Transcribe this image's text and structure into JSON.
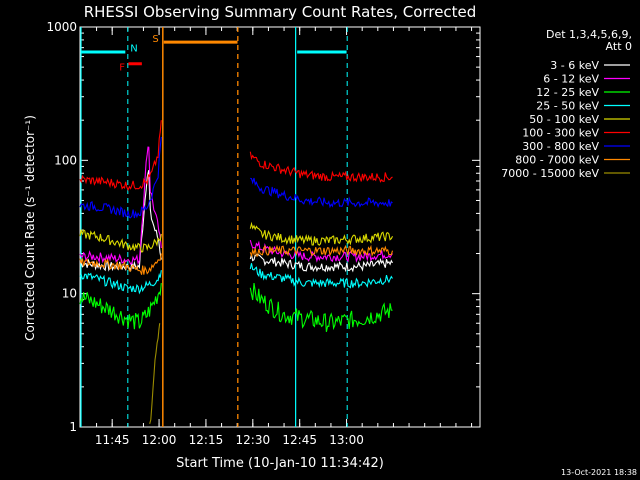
{
  "chart_data": {
    "type": "line",
    "title": "RHESSI Observing Summary Count Rates, Corrected",
    "xlabel": "Start Time (10-Jan-10 11:34:42)",
    "ylabel": "Corrected Count Rate (s⁻¹ detector⁻¹)",
    "x_unit": "minutes since 11:34:42",
    "xlim": [
      0,
      128
    ],
    "xticks": [
      {
        "label": "11:45",
        "x": 10.3
      },
      {
        "label": "12:00",
        "x": 25.3
      },
      {
        "label": "12:15",
        "x": 40.3
      },
      {
        "label": "12:30",
        "x": 55.3
      },
      {
        "label": "12:45",
        "x": 70.3
      },
      {
        "label": "13:00",
        "x": 85.3
      }
    ],
    "yscale": "log",
    "ylim": [
      1,
      1000
    ],
    "yticks": [
      {
        "label": "1",
        "y": 1
      },
      {
        "label": "10",
        "y": 10
      },
      {
        "label": "100",
        "y": 100
      },
      {
        "label": "1000",
        "y": 1000
      }
    ],
    "legend": {
      "placement": "top-right",
      "header": [
        "Det 1,3,4,5,6,9,",
        "Att 0"
      ]
    },
    "series": [
      {
        "name": "3 - 6 keV",
        "color": "#ffffff",
        "segments": [
          {
            "x": [
              0,
              5,
              10,
              15,
              19,
              21.5,
              22,
              22.5,
              24,
              25.2,
              26
            ],
            "y": [
              17,
              16.5,
              16,
              16,
              16,
              80,
              82,
              40,
              30,
              25,
              18
            ]
          },
          {
            "x": [
              54.5,
              58,
              65,
              72,
              80,
              90,
              100
            ],
            "y": [
              19,
              18,
              17,
              16,
              16,
              16,
              17
            ]
          }
        ]
      },
      {
        "name": "6 - 12 keV",
        "color": "#ff00ff",
        "segments": [
          {
            "x": [
              0,
              5,
              10,
              15,
              19,
              21.5,
              22,
              22.5,
              24,
              25.2,
              26
            ],
            "y": [
              19,
              19,
              18.5,
              18,
              18,
              120,
              130,
              60,
              40,
              30,
              22
            ]
          },
          {
            "x": [
              54.5,
              58,
              65,
              72,
              80,
              90,
              100
            ],
            "y": [
              24,
              22,
              20,
              19,
              19,
              19,
              20
            ]
          }
        ]
      },
      {
        "name": "12 - 25 keV",
        "color": "#00ff00",
        "segments": [
          {
            "x": [
              0,
              5,
              10,
              15,
              19,
              21.5,
              23,
              25,
              26
            ],
            "y": [
              9.5,
              8.5,
              7.5,
              6.5,
              6,
              7,
              8,
              10,
              12
            ]
          },
          {
            "x": [
              54.5,
              58,
              65,
              72,
              80,
              90,
              100
            ],
            "y": [
              11,
              9,
              7,
              6.5,
              6,
              6.5,
              7.5
            ]
          }
        ]
      },
      {
        "name": "25 - 50 keV",
        "color": "#00ffff",
        "segments": [
          {
            "x": [
              0,
              5,
              10,
              15,
              19,
              21.5,
              23,
              25,
              26
            ],
            "y": [
              14,
              13,
              12,
              11,
              11,
              11.5,
              12,
              13,
              15
            ]
          },
          {
            "x": [
              54.5,
              58,
              65,
              72,
              80,
              90,
              100
            ],
            "y": [
              16,
              14,
              13,
              12,
              12,
              12,
              13
            ]
          }
        ]
      },
      {
        "name": "50 - 100 keV",
        "color": "#d8d800",
        "segments": [
          {
            "x": [
              0,
              5,
              10,
              15,
              19,
              21.5,
              23,
              25,
              26
            ],
            "y": [
              28,
              27,
              25,
              23,
              22,
              22,
              23,
              25,
              28
            ]
          },
          {
            "x": [
              54.5,
              58,
              65,
              72,
              80,
              90,
              100
            ],
            "y": [
              32,
              28,
              26,
              25,
              25,
              26,
              27
            ]
          }
        ]
      },
      {
        "name": "100 - 300 keV",
        "color": "#ff0000",
        "segments": [
          {
            "x": [
              0,
              5,
              10,
              15,
              19,
              21.5,
              23,
              25,
              26
            ],
            "y": [
              72,
              70,
              68,
              65,
              65,
              70,
              80,
              110,
              200
            ]
          },
          {
            "x": [
              54.5,
              58,
              65,
              72,
              80,
              90,
              100
            ],
            "y": [
              108,
              95,
              85,
              78,
              75,
              75,
              75
            ]
          }
        ]
      },
      {
        "name": "300 - 800 keV",
        "color": "#0000ff",
        "segments": [
          {
            "x": [
              0,
              5,
              10,
              15,
              19,
              21.5,
              23,
              25,
              26
            ],
            "y": [
              46,
              45,
              43,
              40,
              40,
              45,
              55,
              80,
              150
            ]
          },
          {
            "x": [
              54.5,
              58,
              65,
              72,
              80,
              90,
              100
            ],
            "y": [
              72,
              62,
              55,
              50,
              48,
              48,
              48
            ]
          }
        ]
      },
      {
        "name": "800 - 7000 keV",
        "color": "#ff8800",
        "segments": [
          {
            "x": [
              0,
              5,
              10,
              15,
              19,
              21.5,
              23,
              25,
              26
            ],
            "y": [
              17,
              17,
              16.5,
              16,
              15,
              15,
              16,
              18,
              20
            ]
          },
          {
            "x": [
              54.5,
              58,
              65,
              72,
              80,
              90,
              100
            ],
            "y": [
              20,
              21,
              21,
              21,
              21,
              21,
              21
            ]
          }
        ]
      },
      {
        "name": "7000 - 15000 keV",
        "color": "#9b8c00",
        "segments": [
          {
            "x": [
              22.3,
              23,
              24,
              25,
              25.5
            ],
            "y": [
              1,
              1.5,
              3,
              5,
              6
            ]
          }
        ]
      }
    ],
    "annotations": {
      "cyan_solid_lines_x": [
        0,
        69
      ],
      "cyan_dashed_lines_x": [
        15.3,
        85.5
      ],
      "orange_solid_line_x": 26.5,
      "orange_dashed_line_x": 50.5,
      "top_bars": [
        {
          "color": "#00ffff",
          "x": [
            0.3,
            14.5
          ],
          "y": 650
        },
        {
          "color": "#00ffff",
          "x": [
            69.5,
            85.3
          ],
          "y": 650
        },
        {
          "color": "#ff8800",
          "x": [
            26.8,
            50.4
          ],
          "y": 770
        },
        {
          "color": "#ff0000",
          "x": [
            15.5,
            19.8
          ],
          "y": 530
        }
      ],
      "flags": [
        {
          "label": "F",
          "color": "#ff0000",
          "x": 12.2,
          "y": 505
        },
        {
          "label": "N",
          "color": "#00ffff",
          "x": 16,
          "y": 700
        },
        {
          "label": "S",
          "color": "#ff8800",
          "x": 22.9,
          "y": 830
        }
      ]
    }
  },
  "footer": {
    "timestamp": "13-Oct-2021 18:38"
  }
}
